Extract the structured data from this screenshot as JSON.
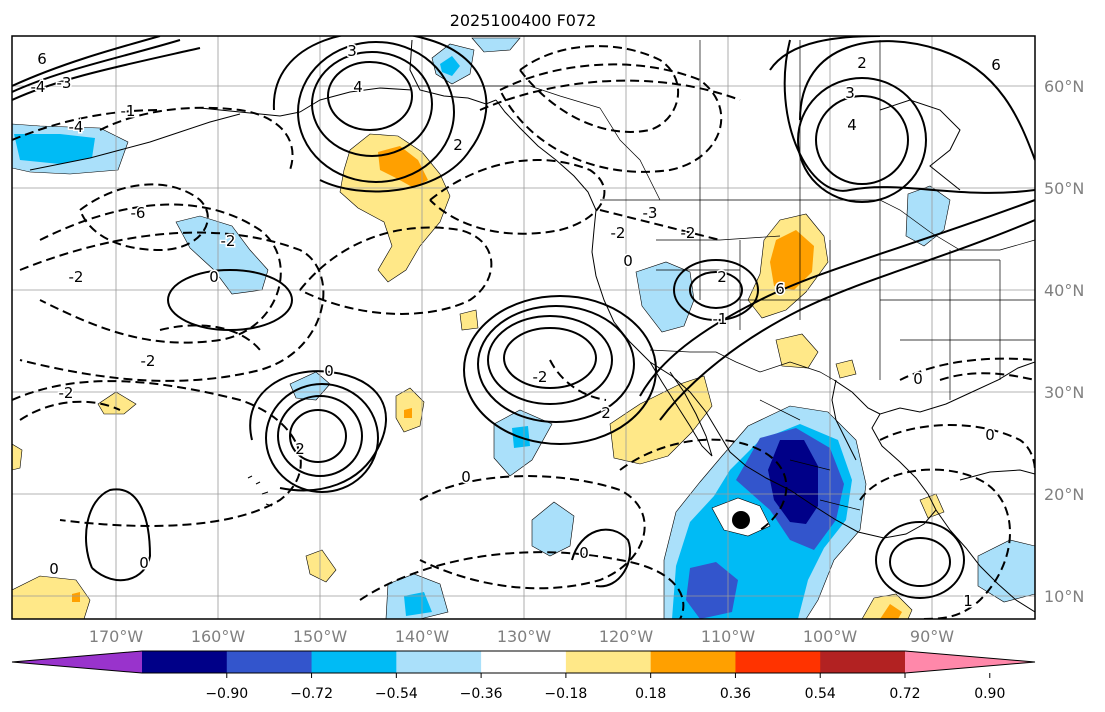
{
  "title": "2025100400 F072",
  "map": {
    "lon_labels": [
      "170°W",
      "160°W",
      "150°W",
      "140°W",
      "130°W",
      "120°W",
      "110°W",
      "100°W",
      "90°W"
    ],
    "lat_labels": [
      "60°N",
      "50°N",
      "40°N",
      "30°N",
      "20°N",
      "10°N"
    ],
    "contour_labels": [
      "-4",
      "-3",
      "-4",
      "-6",
      "-2",
      "-2",
      "-2",
      "-2",
      "-3",
      "-2",
      "-2",
      "0",
      "0",
      "0",
      "0",
      "0",
      "0",
      "0",
      "0",
      "0",
      "-1",
      "-1",
      "-2",
      "2",
      "2",
      "2",
      "2",
      "2",
      "3",
      "3",
      "4",
      "4",
      "6",
      "6",
      "6",
      "1"
    ],
    "colors": {
      "contour": "#000000",
      "grid": "#9a9a9a",
      "coast": "#000000",
      "marker": "#000000"
    }
  },
  "colorbar": {
    "ticks": [
      "−0.90",
      "−0.72",
      "−0.54",
      "−0.36",
      "−0.18",
      "0.18",
      "0.36",
      "0.54",
      "0.72",
      "0.90"
    ],
    "colors": [
      "#9933cc",
      "#000088",
      "#3355cc",
      "#00bbf5",
      "#aae0fa",
      "#ffffff",
      "#ffe888",
      "#ffa000",
      "#ff3300",
      "#b22222",
      "#ff88aa"
    ]
  }
}
